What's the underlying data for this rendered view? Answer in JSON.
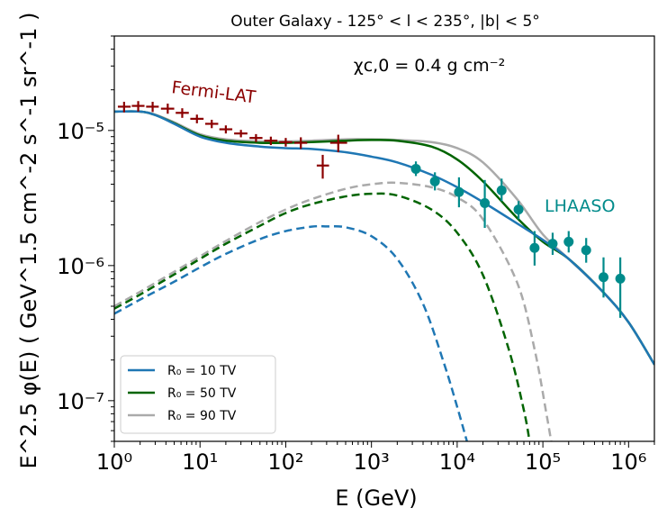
{
  "chart_data": {
    "type": "line",
    "title": "Outer Galaxy - 125° < l < 235°, |b| < 5°",
    "xlabel": "E (GeV)",
    "ylabel": "E^2.5 φ(E) ( GeV^1.5 cm^-2 s^-1 sr^-1 )",
    "xscale": "log",
    "yscale": "log",
    "xlim": [
      1,
      2000000
    ],
    "ylim": [
      5e-08,
      5e-05
    ],
    "x_ticks": [
      {
        "value": 1,
        "label": "10⁰"
      },
      {
        "value": 10,
        "label": "10¹"
      },
      {
        "value": 100,
        "label": "10²"
      },
      {
        "value": 1000,
        "label": "10³"
      },
      {
        "value": 10000,
        "label": "10⁴"
      },
      {
        "value": 100000,
        "label": "10⁵"
      },
      {
        "value": 1000000,
        "label": "10⁶"
      }
    ],
    "y_ticks": [
      {
        "value": 1e-07,
        "label": "10⁻⁷"
      },
      {
        "value": 1e-06,
        "label": "10⁻⁶"
      },
      {
        "value": 1e-05,
        "label": "10⁻⁵"
      }
    ],
    "annotations": {
      "chi": "χc,0 = 0.4 g cm⁻²",
      "fermi": "Fermi-LAT",
      "lhaaso": "LHAASO"
    },
    "colors": {
      "r10": "#1f77b4",
      "r50": "#006400",
      "r90": "#aaaaaa",
      "fermi": "#8b0000",
      "lhaaso": "#008b8b"
    },
    "legend": {
      "location": "lower-left",
      "entries": [
        {
          "series": "r10",
          "label": "R₀ = 10 TV"
        },
        {
          "series": "r50",
          "label": "R₀ = 50 TV"
        },
        {
          "series": "r90",
          "label": "R₀ = 90 TV"
        }
      ]
    },
    "series": [
      {
        "name": "R0 = 10 TV total",
        "color_key": "r10",
        "style": "solid",
        "x": [
          1,
          2,
          3,
          5,
          10,
          20,
          50,
          100,
          200,
          500,
          1000,
          2000,
          5000,
          10000,
          20000,
          50000,
          100000,
          200000,
          500000,
          1000000,
          2000000
        ],
        "y": [
          1.38e-05,
          1.38e-05,
          1.3e-05,
          1.12e-05,
          9e-06,
          8.1e-06,
          7.6e-06,
          7.4e-06,
          7.3e-06,
          6.9e-06,
          6.4e-06,
          5.8e-06,
          4.7e-06,
          3.8e-06,
          2.95e-06,
          2.05e-06,
          1.55e-06,
          1.12e-06,
          6.4e-07,
          3.8e-07,
          1.85e-07
        ]
      },
      {
        "name": "R0 = 10 TV dashed",
        "color_key": "r10",
        "style": "dashed",
        "x": [
          1,
          2,
          5,
          10,
          20,
          50,
          100,
          200,
          300,
          500,
          1000,
          2000,
          4000,
          7000,
          10000,
          13000
        ],
        "y": [
          4.4e-07,
          5.6e-07,
          7.6e-07,
          9.7e-07,
          1.22e-06,
          1.57e-06,
          1.8e-06,
          1.94e-06,
          1.95e-06,
          1.92e-06,
          1.65e-06,
          1.12e-06,
          5.2e-07,
          1.9e-07,
          9e-08,
          5e-08
        ]
      },
      {
        "name": "R0 = 50 TV total",
        "color_key": "r50",
        "style": "solid",
        "x": [
          1,
          2,
          3,
          5,
          10,
          20,
          50,
          100,
          200,
          500,
          1000,
          2000,
          5000,
          10000,
          20000,
          50000,
          100000,
          200000,
          500000,
          1000000,
          2000000
        ],
        "y": [
          1.38e-05,
          1.38e-05,
          1.3e-05,
          1.13e-05,
          9.2e-06,
          8.4e-06,
          8.1e-06,
          8.1e-06,
          8.2e-06,
          8.4e-06,
          8.5e-06,
          8.4e-06,
          7.6e-06,
          6.1e-06,
          4.2e-06,
          2.25e-06,
          1.5e-06,
          1.12e-06,
          6.4e-07,
          3.8e-07,
          1.85e-07
        ]
      },
      {
        "name": "R0 = 50 TV dashed",
        "color_key": "r50",
        "style": "dashed",
        "x": [
          1,
          2,
          5,
          10,
          20,
          50,
          100,
          200,
          500,
          1000,
          2000,
          5000,
          10000,
          20000,
          40000,
          60000,
          70000
        ],
        "y": [
          4.8e-07,
          6.1e-07,
          8.6e-07,
          1.12e-06,
          1.45e-06,
          1.97e-06,
          2.45e-06,
          2.85e-06,
          3.25e-06,
          3.4e-06,
          3.3e-06,
          2.6e-06,
          1.75e-06,
          8.5e-07,
          2.4e-07,
          8.5e-08,
          5e-08
        ]
      },
      {
        "name": "R0 = 90 TV total",
        "color_key": "r90",
        "style": "solid",
        "x": [
          1,
          2,
          3,
          5,
          10,
          20,
          50,
          100,
          200,
          500,
          1000,
          2000,
          5000,
          10000,
          20000,
          50000,
          100000,
          200000,
          500000,
          1000000,
          2000000
        ],
        "y": [
          1.38e-05,
          1.38e-05,
          1.31e-05,
          1.15e-05,
          9.4e-06,
          8.6e-06,
          8.3e-06,
          8.3e-06,
          8.4e-06,
          8.6e-06,
          8.6e-06,
          8.5e-06,
          8.2e-06,
          7.4e-06,
          5.8e-06,
          3.1e-06,
          1.7e-06,
          1.12e-06,
          6.4e-07,
          3.8e-07,
          1.85e-07
        ]
      },
      {
        "name": "R0 = 90 TV dashed",
        "color_key": "r90",
        "style": "dashed",
        "x": [
          1,
          2,
          5,
          10,
          20,
          50,
          100,
          200,
          500,
          1000,
          2000,
          5000,
          10000,
          20000,
          50000,
          80000,
          110000,
          125000
        ],
        "y": [
          5e-07,
          6.4e-07,
          9e-07,
          1.17e-06,
          1.52e-06,
          2.1e-06,
          2.6e-06,
          3.1e-06,
          3.7e-06,
          4e-06,
          4.1e-06,
          3.8e-06,
          3.2e-06,
          2.2e-06,
          7.5e-07,
          2.4e-07,
          8e-08,
          5e-08
        ]
      }
    ],
    "fermi_points": {
      "color_key": "fermi",
      "points": [
        {
          "x": 1.3,
          "y": 1.5e-05,
          "xlo": 1.1,
          "xhi": 1.55,
          "ylo": 1.36e-05,
          "yhi": 1.63e-05
        },
        {
          "x": 1.9,
          "y": 1.52e-05,
          "xlo": 1.6,
          "xhi": 2.25,
          "ylo": 1.38e-05,
          "yhi": 1.65e-05
        },
        {
          "x": 2.8,
          "y": 1.5e-05,
          "xlo": 2.35,
          "xhi": 3.3,
          "ylo": 1.37e-05,
          "yhi": 1.63e-05
        },
        {
          "x": 4.2,
          "y": 1.45e-05,
          "xlo": 3.5,
          "xhi": 5.0,
          "ylo": 1.33e-05,
          "yhi": 1.58e-05
        },
        {
          "x": 6.2,
          "y": 1.35e-05,
          "xlo": 5.2,
          "xhi": 7.4,
          "ylo": 1.24e-05,
          "yhi": 1.46e-05
        },
        {
          "x": 9.2,
          "y": 1.22e-05,
          "xlo": 7.7,
          "xhi": 11,
          "ylo": 1.13e-05,
          "yhi": 1.31e-05
        },
        {
          "x": 13.7,
          "y": 1.12e-05,
          "xlo": 11.5,
          "xhi": 16.3,
          "ylo": 1.04e-05,
          "yhi": 1.2e-05
        },
        {
          "x": 20,
          "y": 1.02e-05,
          "xlo": 16.8,
          "xhi": 23.8,
          "ylo": 9.5e-06,
          "yhi": 1.09e-05
        },
        {
          "x": 30,
          "y": 9.5e-06,
          "xlo": 25,
          "xhi": 35.7,
          "ylo": 8.9e-06,
          "yhi": 1.01e-05
        },
        {
          "x": 45,
          "y": 8.8e-06,
          "xlo": 37.8,
          "xhi": 53.5,
          "ylo": 8.2e-06,
          "yhi": 9.4e-06
        },
        {
          "x": 67,
          "y": 8.4e-06,
          "xlo": 56,
          "xhi": 80,
          "ylo": 7.8e-06,
          "yhi": 9e-06
        },
        {
          "x": 100,
          "y": 8.2e-06,
          "xlo": 84,
          "xhi": 119,
          "ylo": 7.6e-06,
          "yhi": 8.8e-06
        },
        {
          "x": 150,
          "y": 8.1e-06,
          "xlo": 126,
          "xhi": 178,
          "ylo": 7.3e-06,
          "yhi": 8.9e-06
        },
        {
          "x": 270,
          "y": 5.5e-06,
          "xlo": 230,
          "xhi": 320,
          "ylo": 4.4e-06,
          "yhi": 6.6e-06
        },
        {
          "x": 410,
          "y": 8.1e-06,
          "xlo": 330,
          "xhi": 520,
          "ylo": 6.9e-06,
          "yhi": 9.3e-06
        }
      ]
    },
    "lhaaso_points": {
      "color_key": "lhaaso",
      "points": [
        {
          "x": 3300,
          "y": 5.2e-06,
          "ylo": 4.6e-06,
          "yhi": 5.9e-06
        },
        {
          "x": 5500,
          "y": 4.2e-06,
          "ylo": 3.6e-06,
          "yhi": 4.9e-06
        },
        {
          "x": 10500,
          "y": 3.5e-06,
          "ylo": 2.7e-06,
          "yhi": 4.5e-06
        },
        {
          "x": 21000,
          "y": 2.9e-06,
          "ylo": 1.9e-06,
          "yhi": 4.3e-06
        },
        {
          "x": 33000,
          "y": 3.6e-06,
          "ylo": 3e-06,
          "yhi": 4.4e-06
        },
        {
          "x": 52000,
          "y": 2.6e-06,
          "ylo": 2.2e-06,
          "yhi": 3e-06
        },
        {
          "x": 80000,
          "y": 1.35e-06,
          "ylo": 1e-06,
          "yhi": 1.8e-06
        },
        {
          "x": 130000,
          "y": 1.45e-06,
          "ylo": 1.2e-06,
          "yhi": 1.75e-06
        },
        {
          "x": 200000,
          "y": 1.5e-06,
          "ylo": 1.25e-06,
          "yhi": 1.8e-06
        },
        {
          "x": 320000,
          "y": 1.3e-06,
          "ylo": 1.05e-06,
          "yhi": 1.6e-06
        },
        {
          "x": 510000,
          "y": 8.2e-07,
          "ylo": 5.8e-07,
          "yhi": 1.15e-06
        },
        {
          "x": 800000,
          "y": 8e-07,
          "ylo": 4.1e-07,
          "yhi": 1.15e-06
        }
      ]
    }
  }
}
